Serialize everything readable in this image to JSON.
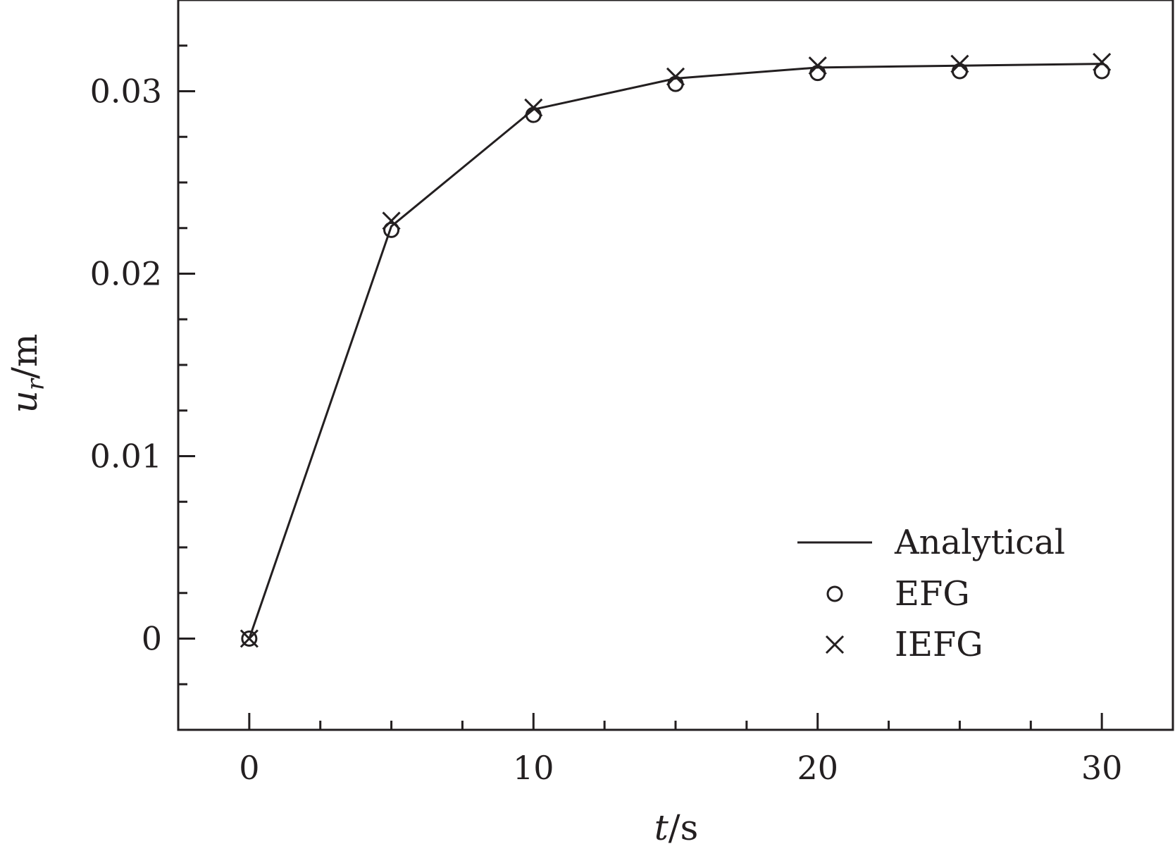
{
  "chart_data": {
    "type": "line",
    "title": "",
    "xlabel": {
      "var": "t",
      "unit": "s"
    },
    "ylabel": {
      "var": "u",
      "sub": "r",
      "unit": "m"
    },
    "xlim": [
      -2.5,
      32.5
    ],
    "ylim": [
      -0.005,
      0.035
    ],
    "x_ticks": [
      0,
      10,
      20,
      30
    ],
    "x_tick_labels": [
      "0",
      "10",
      "20",
      "30"
    ],
    "x_minor_step": 2.5,
    "y_ticks": [
      0,
      0.01,
      0.02,
      0.03
    ],
    "y_tick_labels": [
      "0",
      "0.01",
      "0.02",
      "0.03"
    ],
    "y_minor_step": 0.0025,
    "grid": false,
    "legend_position": "bottom-right",
    "series": [
      {
        "name": "Analytical",
        "style": "line",
        "x": [
          0,
          5,
          10,
          15,
          20,
          25,
          30
        ],
        "y": [
          0,
          0.0226,
          0.029,
          0.0307,
          0.0313,
          0.0314,
          0.0315
        ]
      },
      {
        "name": "EFG",
        "style": "circle",
        "x": [
          0,
          5,
          10,
          15,
          20,
          25,
          30
        ],
        "y": [
          0,
          0.0224,
          0.0287,
          0.0304,
          0.031,
          0.0311,
          0.0311
        ]
      },
      {
        "name": "IEFG",
        "style": "cross",
        "x": [
          0,
          5,
          10,
          15,
          20,
          25,
          30
        ],
        "y": [
          0,
          0.0229,
          0.0291,
          0.0308,
          0.0314,
          0.0315,
          0.0316
        ]
      }
    ],
    "colors": {
      "ink": "#231f20",
      "background": "#ffffff"
    }
  }
}
